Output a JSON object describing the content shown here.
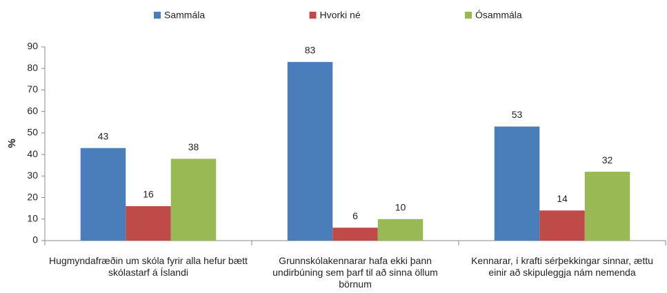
{
  "chart_data": {
    "type": "bar",
    "y_label": "%",
    "categories": [
      "Hugmyndafræðin um skóla fyrir alla hefur bætt skólastarf á Íslandi",
      "Grunnskólakennarar hafa ekki þann undirbúning sem þarf til að sinna öllum börnum",
      "Kennarar, í krafti sérþekkingar sinnar, ættu einir að skipuleggja nám nemenda"
    ],
    "series": [
      {
        "name": "Sammála",
        "color": "#4a7ebb",
        "values": [
          43,
          83,
          53
        ]
      },
      {
        "name": "Hvorki né",
        "color": "#be4b48",
        "values": [
          16,
          6,
          14
        ]
      },
      {
        "name": "Ósammála",
        "color": "#98b954",
        "values": [
          38,
          10,
          32
        ]
      }
    ],
    "ylim": [
      0,
      90
    ],
    "yticks": [
      0,
      10,
      20,
      30,
      40,
      50,
      60,
      70,
      80,
      90
    ],
    "legend": "top"
  }
}
